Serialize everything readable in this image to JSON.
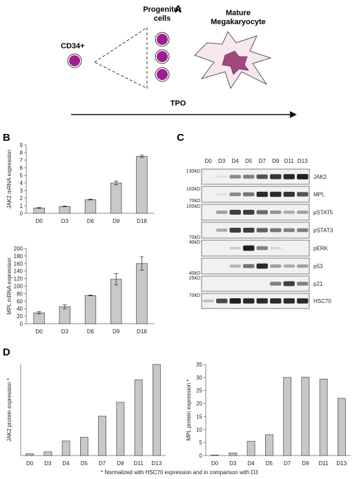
{
  "panels": {
    "A": {
      "letter": "A",
      "cd34_label": "CD34+",
      "progenitor_label_1": "Progenitor",
      "progenitor_label_2": "cells",
      "mature_label_1": "Mature",
      "mature_label_2": "Megakaryocyte",
      "tpo_label": "TPO",
      "cell_color": "#9b1f8f",
      "mk_color": "#a04a7c"
    },
    "B": {
      "letter": "B"
    },
    "C": {
      "letter": "C",
      "lanes": [
        "D0",
        "D3",
        "D4",
        "D5",
        "D7",
        "D9",
        "D11",
        "D13"
      ],
      "blots": [
        {
          "label": "JAK2",
          "markers": [
            "130kD"
          ],
          "intensity": [
            0,
            0.05,
            0.45,
            0.5,
            0.7,
            0.85,
            0.9,
            0.95
          ]
        },
        {
          "label": "MPL",
          "markers": [
            "100kD",
            "70kD"
          ],
          "intensity": [
            0,
            0.05,
            0.45,
            0.55,
            0.9,
            0.9,
            0.85,
            0.7
          ]
        },
        {
          "label": "pSTAT5",
          "markers": [
            "100kD"
          ],
          "intensity": [
            0,
            0.35,
            0.8,
            0.8,
            0.6,
            0.4,
            0.3,
            0.35
          ]
        },
        {
          "label": "pSTAT3",
          "markers": [
            "70kD"
          ],
          "intensity": [
            0,
            0.3,
            0.8,
            0.8,
            0.65,
            0.55,
            0.5,
            0.5
          ]
        },
        {
          "label": "pERK",
          "markers": [
            "40kD"
          ],
          "intensity": [
            0,
            0,
            0.15,
            0.95,
            0.5,
            0.1,
            0,
            0
          ]
        },
        {
          "label": "p53",
          "markers": [
            "40kD"
          ],
          "intensity": [
            0,
            0,
            0.25,
            0.55,
            0.9,
            0.35,
            0.3,
            0.35
          ]
        },
        {
          "label": "p21",
          "markers": [
            "25kD"
          ],
          "intensity": [
            0,
            0,
            0,
            0,
            0,
            0.5,
            0.8,
            0.5
          ]
        },
        {
          "label": "HSC70",
          "markers": [
            "70kD"
          ],
          "intensity": [
            0.2,
            0.75,
            0.95,
            0.9,
            0.9,
            0.9,
            0.9,
            0.9
          ]
        }
      ]
    },
    "D": {
      "letter": "D"
    },
    "footnote": "* Normalized with HSC70 expression and in comparison with D3"
  },
  "chart_data": [
    {
      "type": "bar",
      "panel": "B",
      "ylabel": "JAK2 mRNA expression",
      "categories": [
        "D0",
        "D3",
        "D6",
        "D9",
        "D18"
      ],
      "values": [
        0.7,
        0.9,
        1.8,
        4.0,
        7.5
      ],
      "errors": [
        0.05,
        0.05,
        0.05,
        0.25,
        0.15
      ],
      "ylim": [
        0,
        9
      ],
      "yticks": [
        0,
        1,
        2,
        3,
        4,
        5,
        6,
        7,
        8,
        9
      ]
    },
    {
      "type": "bar",
      "panel": "B",
      "ylabel": "MPL mRNA expression",
      "categories": [
        "D0",
        "D3",
        "D6",
        "D9",
        "D18"
      ],
      "values": [
        29,
        45,
        75,
        118,
        160
      ],
      "errors": [
        3,
        5,
        1,
        15,
        18
      ],
      "ylim": [
        0,
        200
      ],
      "yticks": [
        0,
        20,
        40,
        60,
        80,
        100,
        120,
        140,
        160,
        180,
        200
      ]
    },
    {
      "type": "bar",
      "panel": "D",
      "ylabel": "JAK2 protein expression *",
      "categories": [
        "D0",
        "D3",
        "D4",
        "D5",
        "D7",
        "D9",
        "D11",
        "D13"
      ],
      "values": [
        0.5,
        1.0,
        4.0,
        5.0,
        10.8,
        14.6,
        20.8,
        25.0
      ],
      "ylim": [
        0,
        25
      ]
    },
    {
      "type": "bar",
      "panel": "D",
      "ylabel": "MPL protein expression *",
      "categories": [
        "D0",
        "D3",
        "D4",
        "D5",
        "D7",
        "D9",
        "D11",
        "D13"
      ],
      "values": [
        0.2,
        1.0,
        5.5,
        8.0,
        30.0,
        30.1,
        29.4,
        22.0
      ],
      "ylim": [
        0,
        35
      ],
      "yticks": [
        0,
        5,
        10,
        15,
        20,
        25,
        30,
        35
      ]
    }
  ]
}
